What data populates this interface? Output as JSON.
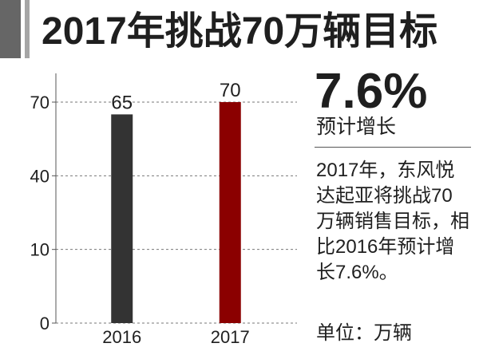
{
  "chart_data": {
    "type": "bar",
    "title": "2017年挑战70万辆目标",
    "categories": [
      "2016",
      "2017"
    ],
    "values": [
      65,
      70
    ],
    "bar_colors": [
      "#333333",
      "#8b0000"
    ],
    "yticks": [
      0,
      10,
      40,
      70
    ],
    "ylim": [
      0,
      70
    ],
    "grid": true,
    "unit_label": "单位：万辆"
  },
  "summary": {
    "headline": "7.6%",
    "headline_caption": "预计增长",
    "body_lines": [
      "2017年，东风悦",
      "达起亚将挑战70",
      "万辆销售目标，相",
      "比2016年预计增",
      "长7.6%。"
    ]
  },
  "colors": {
    "text": "#1f1f1f",
    "header_block": "#666666",
    "header_stripe": "#a6a6a6",
    "axis": "#555555",
    "grid": "#777777",
    "divider": "#555555"
  }
}
